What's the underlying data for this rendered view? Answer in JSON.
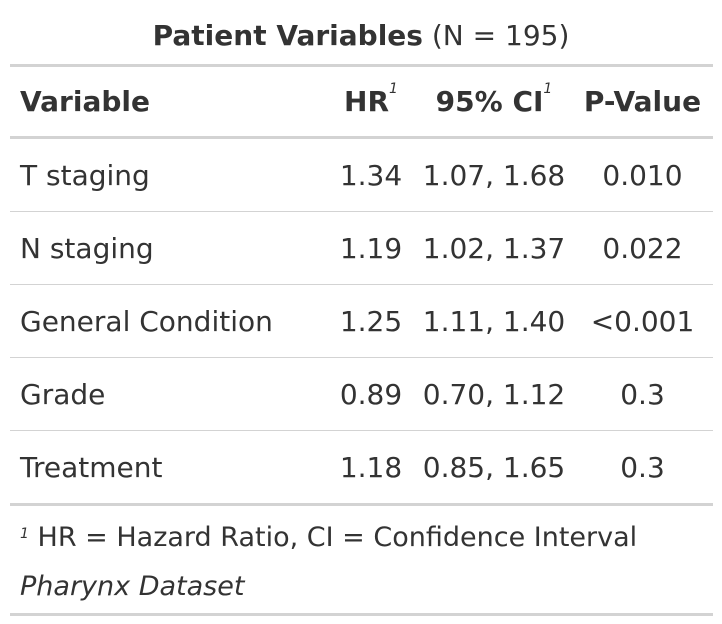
{
  "title": {
    "main": "Patient Variables",
    "sub": "(N = 195)"
  },
  "table": {
    "headers": {
      "variable": "Variable",
      "hr": "HR",
      "hr_fn": "1",
      "ci": "95% CI",
      "ci_fn": "1",
      "p": "P-Value"
    },
    "rows": [
      {
        "variable": "T staging",
        "hr": "1.34",
        "ci": "1.07, 1.68",
        "p": "0.010"
      },
      {
        "variable": "N staging",
        "hr": "1.19",
        "ci": "1.02, 1.37",
        "p": "0.022"
      },
      {
        "variable": "General Condition",
        "hr": "1.25",
        "ci": "1.11, 1.40",
        "p": "<0.001"
      },
      {
        "variable": "Grade",
        "hr": "0.89",
        "ci": "0.70, 1.12",
        "p": "0.3"
      },
      {
        "variable": "Treatment",
        "hr": "1.18",
        "ci": "0.85, 1.65",
        "p": "0.3"
      }
    ]
  },
  "footnote": {
    "marker": "1",
    "text": "HR = Hazard Ratio, CI = Confidence Interval"
  },
  "source_note": "Pharynx Dataset",
  "colors": {
    "text": "#333333",
    "rule": "#d3d3d3",
    "background": "#ffffff"
  }
}
